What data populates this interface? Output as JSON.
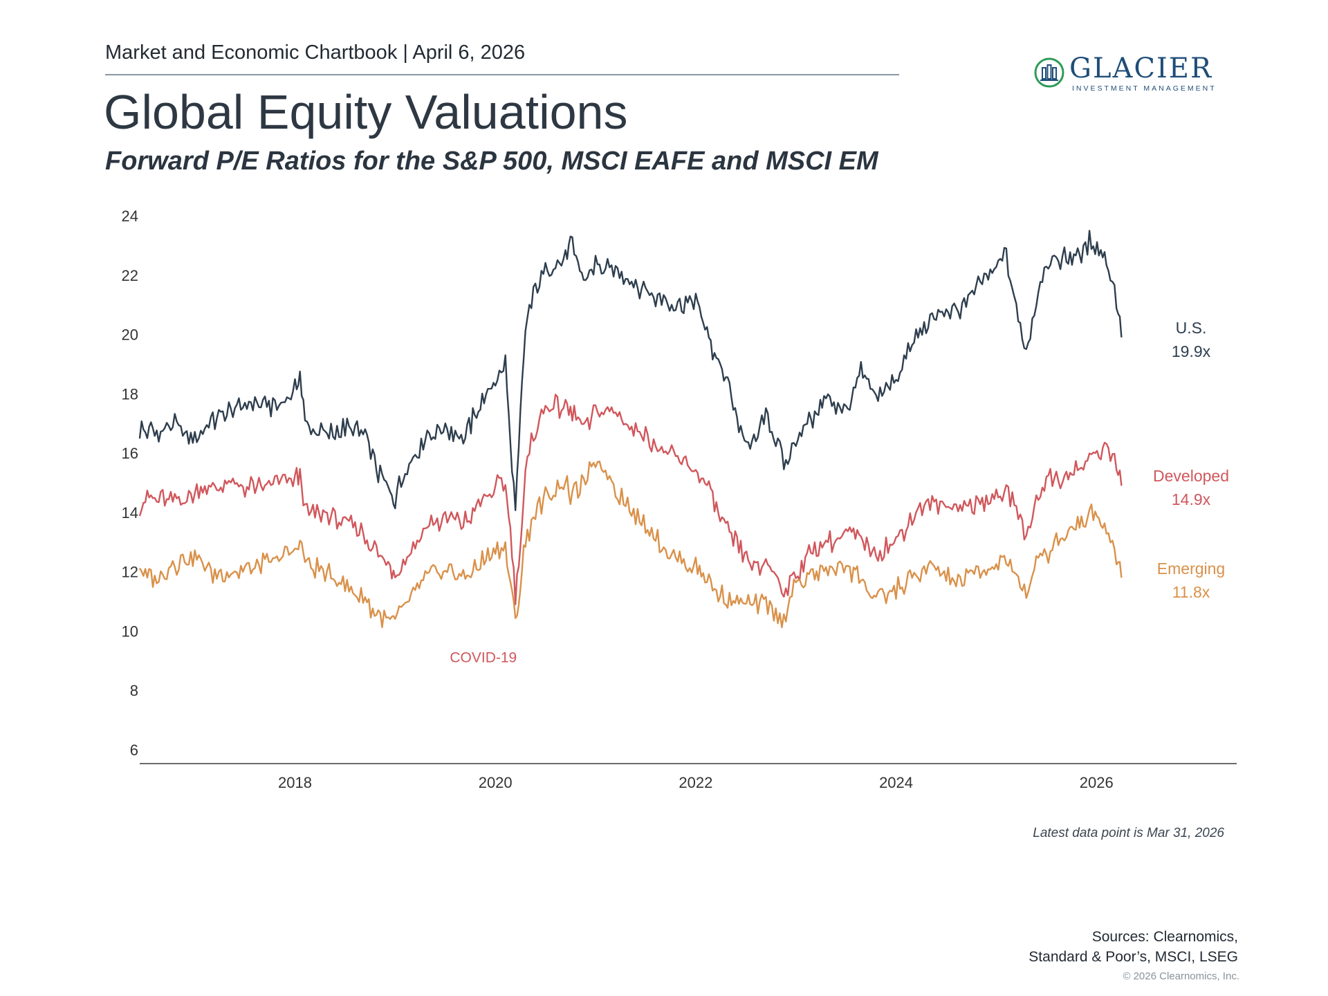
{
  "header": {
    "chartbook": "Market and Economic Chartbook | April 6, 2026",
    "logo_name": "GLACIER",
    "logo_tagline": "INVESTMENT MANAGEMENT"
  },
  "title": "Global Equity Valuations",
  "subtitle": "Forward P/E Ratios for the S&P 500, MSCI EAFE and MSCI EM",
  "note": "Latest data point is Mar 31, 2026",
  "sources": {
    "line1": "Sources: Clearnomics,",
    "line2": "Standard & Poor’s, MSCI, LSEG"
  },
  "copyright": "© 2026 Clearnomics, Inc.",
  "colors": {
    "us": "#2e3e4e",
    "developed": "#d0575c",
    "emerging": "#d9914a",
    "axis": "#3a3a3a",
    "tick_text": "#333333",
    "logo": "#1f4d78",
    "logo_accent": "#2e9b57"
  },
  "chart_data": {
    "type": "line",
    "x_unit": "year",
    "xlim": [
      2016.45,
      2027.4
    ],
    "ylim": [
      6,
      24
    ],
    "y_ticks": [
      6,
      8,
      10,
      12,
      14,
      16,
      18,
      20,
      22,
      24
    ],
    "x_ticks": [
      {
        "value": 2018,
        "label": "2018"
      },
      {
        "value": 2020,
        "label": "2020"
      },
      {
        "value": 2022,
        "label": "2022"
      },
      {
        "value": 2024,
        "label": "2024"
      },
      {
        "value": 2026,
        "label": "2026"
      }
    ],
    "grid": false,
    "legend": "direct labels at line ends",
    "annotations": [
      {
        "text": "COVID-19",
        "x": 2019.88,
        "y": 8.95,
        "series": "developed"
      }
    ],
    "series": [
      {
        "key": "us",
        "name": "U.S.",
        "end_label": "19.9x",
        "x": [
          2016.45,
          2016.6,
          2016.8,
          2017.0,
          2017.2,
          2017.4,
          2017.6,
          2017.8,
          2018.0,
          2018.05,
          2018.1,
          2018.3,
          2018.5,
          2018.7,
          2018.85,
          2018.95,
          2019.0,
          2019.1,
          2019.3,
          2019.5,
          2019.7,
          2019.85,
          2020.0,
          2020.1,
          2020.15,
          2020.2,
          2020.25,
          2020.3,
          2020.4,
          2020.5,
          2020.7,
          2020.75,
          2020.9,
          2021.0,
          2021.2,
          2021.4,
          2021.6,
          2021.8,
          2022.0,
          2022.15,
          2022.3,
          2022.45,
          2022.6,
          2022.7,
          2022.8,
          2022.9,
          2023.0,
          2023.15,
          2023.3,
          2023.5,
          2023.65,
          2023.8,
          2024.0,
          2024.2,
          2024.4,
          2024.6,
          2024.8,
          2025.0,
          2025.1,
          2025.2,
          2025.3,
          2025.4,
          2025.5,
          2025.7,
          2025.85,
          2025.95,
          2026.1,
          2026.2,
          2026.25
        ],
        "values": [
          16.8,
          16.7,
          16.9,
          16.5,
          17.1,
          17.5,
          17.7,
          17.6,
          18.1,
          18.6,
          17.0,
          16.6,
          16.8,
          16.6,
          15.2,
          14.8,
          14.5,
          15.4,
          16.6,
          16.8,
          16.6,
          17.6,
          18.5,
          19.0,
          16.3,
          14.1,
          17.2,
          20.2,
          21.6,
          22.2,
          22.6,
          23.0,
          21.8,
          22.4,
          22.1,
          21.7,
          21.3,
          21.0,
          21.2,
          19.6,
          18.6,
          16.6,
          16.2,
          17.5,
          16.4,
          15.6,
          16.5,
          17.1,
          17.8,
          17.4,
          18.7,
          18.0,
          18.5,
          19.9,
          20.7,
          20.8,
          21.5,
          22.3,
          22.7,
          20.8,
          19.3,
          21.2,
          22.4,
          22.6,
          22.8,
          23.2,
          22.4,
          21.2,
          19.9
        ]
      },
      {
        "key": "developed",
        "name": "Developed",
        "end_label": "14.9x",
        "x": [
          2016.45,
          2016.6,
          2016.8,
          2017.0,
          2017.2,
          2017.4,
          2017.6,
          2017.8,
          2018.0,
          2018.05,
          2018.1,
          2018.3,
          2018.5,
          2018.7,
          2018.85,
          2018.95,
          2019.0,
          2019.1,
          2019.3,
          2019.5,
          2019.7,
          2019.85,
          2020.0,
          2020.1,
          2020.15,
          2020.2,
          2020.25,
          2020.3,
          2020.4,
          2020.5,
          2020.7,
          2020.75,
          2020.9,
          2021.0,
          2021.2,
          2021.4,
          2021.6,
          2021.8,
          2022.0,
          2022.15,
          2022.3,
          2022.45,
          2022.6,
          2022.7,
          2022.8,
          2022.9,
          2023.0,
          2023.15,
          2023.3,
          2023.5,
          2023.65,
          2023.8,
          2024.0,
          2024.2,
          2024.4,
          2024.6,
          2024.8,
          2025.0,
          2025.1,
          2025.2,
          2025.3,
          2025.4,
          2025.5,
          2025.7,
          2025.85,
          2025.95,
          2026.1,
          2026.2,
          2026.25
        ],
        "values": [
          14.2,
          14.5,
          14.3,
          14.7,
          14.9,
          15.0,
          14.8,
          15.0,
          15.1,
          15.3,
          14.0,
          13.9,
          13.6,
          13.2,
          12.5,
          12.2,
          12.0,
          12.5,
          13.5,
          13.8,
          13.7,
          14.3,
          14.8,
          15.0,
          13.5,
          11.3,
          13.0,
          15.4,
          16.8,
          17.5,
          17.6,
          17.4,
          16.8,
          17.5,
          17.4,
          16.8,
          16.3,
          15.8,
          15.5,
          14.6,
          13.4,
          12.8,
          12.0,
          12.3,
          11.8,
          11.3,
          12.0,
          12.6,
          13.0,
          13.2,
          13.1,
          12.6,
          13.1,
          14.0,
          14.3,
          14.2,
          14.3,
          14.5,
          14.6,
          14.3,
          13.1,
          14.5,
          15.1,
          15.2,
          15.6,
          15.8,
          16.2,
          15.7,
          14.9
        ]
      },
      {
        "key": "emerging",
        "name": "Emerging",
        "end_label": "11.8x",
        "x": [
          2016.45,
          2016.6,
          2016.8,
          2017.0,
          2017.2,
          2017.4,
          2017.6,
          2017.8,
          2018.0,
          2018.05,
          2018.1,
          2018.3,
          2018.5,
          2018.7,
          2018.85,
          2018.95,
          2019.0,
          2019.1,
          2019.3,
          2019.5,
          2019.7,
          2019.85,
          2020.0,
          2020.1,
          2020.15,
          2020.2,
          2020.25,
          2020.3,
          2020.4,
          2020.5,
          2020.7,
          2020.75,
          2020.9,
          2021.0,
          2021.2,
          2021.4,
          2021.6,
          2021.8,
          2022.0,
          2022.15,
          2022.3,
          2022.45,
          2022.6,
          2022.7,
          2022.8,
          2022.9,
          2023.0,
          2023.15,
          2023.3,
          2023.5,
          2023.65,
          2023.8,
          2024.0,
          2024.2,
          2024.4,
          2024.6,
          2024.8,
          2025.0,
          2025.1,
          2025.2,
          2025.3,
          2025.4,
          2025.5,
          2025.7,
          2025.85,
          2025.95,
          2026.1,
          2026.2,
          2026.25
        ],
        "values": [
          12.1,
          11.7,
          12.3,
          12.5,
          11.9,
          12.0,
          12.2,
          12.4,
          12.7,
          13.0,
          12.3,
          12.0,
          11.5,
          11.0,
          10.5,
          10.2,
          10.4,
          10.9,
          11.8,
          12.0,
          11.8,
          12.3,
          12.8,
          12.8,
          11.6,
          10.2,
          11.5,
          13.0,
          14.0,
          14.5,
          15.0,
          14.6,
          15.0,
          15.8,
          14.8,
          13.9,
          13.1,
          12.5,
          12.2,
          11.6,
          11.1,
          11.0,
          10.9,
          11.0,
          10.5,
          10.6,
          11.5,
          11.9,
          12.1,
          12.2,
          11.8,
          11.0,
          11.4,
          11.9,
          12.1,
          11.6,
          12.0,
          12.2,
          12.3,
          12.0,
          11.2,
          12.3,
          12.6,
          13.3,
          13.8,
          14.0,
          13.5,
          12.6,
          11.8
        ]
      }
    ]
  }
}
